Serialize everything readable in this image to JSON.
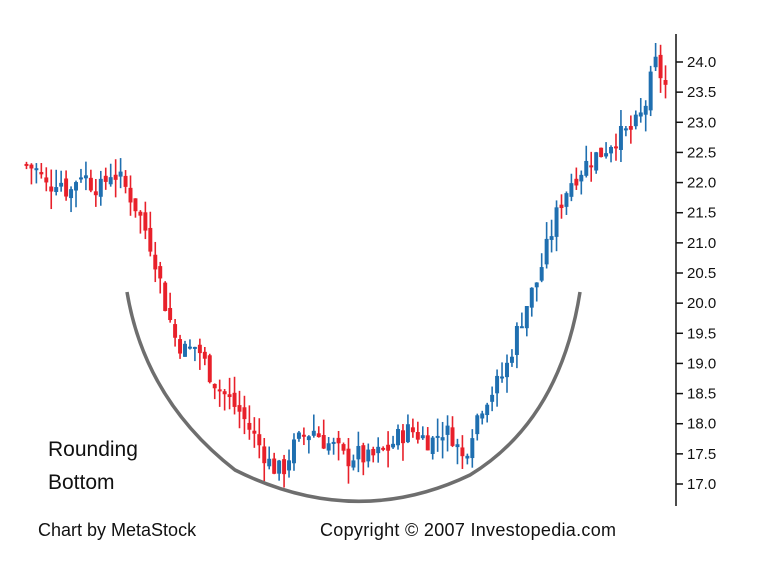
{
  "chart_data": {
    "type": "candlestick",
    "title": "",
    "xlabel": "",
    "ylabel": "",
    "ylim": [
      16.65,
      24.3
    ],
    "yticks": [
      17.0,
      17.5,
      18.0,
      18.5,
      19.0,
      19.5,
      20.0,
      20.5,
      21.0,
      21.5,
      22.0,
      22.5,
      23.0,
      23.5,
      24.0
    ],
    "ytick_labels": [
      "17.0",
      "17.5",
      "18.0",
      "18.5",
      "19.0",
      "19.5",
      "20.0",
      "20.5",
      "21.0",
      "21.5",
      "22.0",
      "22.5",
      "23.0",
      "23.5",
      "24.0"
    ],
    "y_axis_position": "right",
    "grid": false,
    "up_color": "#1f6fb0",
    "down_color": "#e8202a",
    "annotation_curve_color": "#555555",
    "annotation": {
      "line1": "Rounding",
      "line2": "Bottom"
    },
    "close_path": [
      [
        0,
        22.3
      ],
      [
        5,
        22.2
      ],
      [
        10,
        21.9
      ],
      [
        15,
        22.1
      ],
      [
        20,
        21.8
      ],
      [
        25,
        22.2
      ],
      [
        30,
        22.0
      ],
      [
        35,
        21.9
      ],
      [
        40,
        22.2
      ],
      [
        45,
        22.0
      ],
      [
        50,
        21.7
      ],
      [
        55,
        21.3
      ],
      [
        60,
        20.8
      ],
      [
        65,
        20.0
      ],
      [
        70,
        19.4
      ],
      [
        75,
        19.2
      ],
      [
        80,
        19.3
      ],
      [
        85,
        18.9
      ],
      [
        90,
        18.6
      ],
      [
        95,
        18.4
      ],
      [
        100,
        18.2
      ],
      [
        105,
        17.9
      ],
      [
        110,
        17.6
      ],
      [
        115,
        17.3
      ],
      [
        120,
        17.2
      ],
      [
        125,
        17.6
      ],
      [
        130,
        17.8
      ],
      [
        135,
        17.9
      ],
      [
        140,
        17.7
      ],
      [
        145,
        17.6
      ],
      [
        150,
        17.4
      ],
      [
        155,
        17.5
      ],
      [
        160,
        17.4
      ],
      [
        165,
        17.5
      ],
      [
        170,
        17.6
      ],
      [
        175,
        17.8
      ],
      [
        180,
        17.9
      ],
      [
        185,
        17.8
      ],
      [
        190,
        17.7
      ],
      [
        195,
        17.9
      ],
      [
        200,
        17.8
      ],
      [
        205,
        17.4
      ],
      [
        210,
        18.0
      ],
      [
        215,
        18.4
      ],
      [
        220,
        18.6
      ],
      [
        225,
        18.9
      ],
      [
        230,
        19.5
      ],
      [
        235,
        20.0
      ],
      [
        240,
        20.4
      ],
      [
        245,
        21.0
      ],
      [
        250,
        21.6
      ],
      [
        255,
        22.0
      ],
      [
        260,
        22.2
      ],
      [
        265,
        22.4
      ],
      [
        270,
        22.5
      ],
      [
        275,
        22.7
      ],
      [
        280,
        22.8
      ],
      [
        285,
        22.9
      ],
      [
        290,
        23.2
      ],
      [
        295,
        24.0
      ],
      [
        300,
        23.6
      ]
    ],
    "n_bars": 130
  },
  "footer": {
    "left": "Chart by MetaStock",
    "right": "Copyright © 2007 Investopedia.com"
  }
}
